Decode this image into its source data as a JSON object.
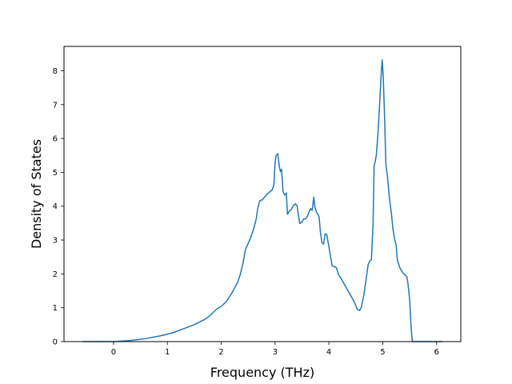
{
  "chart_data": {
    "type": "line",
    "title": "",
    "xlabel": "Frequency (THz)",
    "ylabel": "Density of States",
    "xlim": [
      -0.92,
      6.45
    ],
    "ylim": [
      0,
      8.72
    ],
    "xticks": [
      0,
      1,
      2,
      3,
      4,
      5,
      6
    ],
    "yticks": [
      0,
      1,
      2,
      3,
      4,
      5,
      6,
      7,
      8
    ],
    "xtick_labels": [
      "0",
      "1",
      "2",
      "3",
      "4",
      "5",
      "6"
    ],
    "ytick_labels": [
      "0",
      "1",
      "2",
      "3",
      "4",
      "5",
      "6",
      "7",
      "8"
    ],
    "grid": false,
    "legend": "none",
    "series": [
      {
        "color": "#1f77b4",
        "points": [
          [
            -0.57,
            0.0
          ],
          [
            0.0,
            0.0
          ],
          [
            0.3,
            0.03
          ],
          [
            0.6,
            0.09
          ],
          [
            0.9,
            0.18
          ],
          [
            1.1,
            0.26
          ],
          [
            1.3,
            0.38
          ],
          [
            1.5,
            0.5
          ],
          [
            1.7,
            0.66
          ],
          [
            1.8,
            0.78
          ],
          [
            1.9,
            0.94
          ],
          [
            2.0,
            1.04
          ],
          [
            2.1,
            1.19
          ],
          [
            2.2,
            1.44
          ],
          [
            2.3,
            1.74
          ],
          [
            2.35,
            1.96
          ],
          [
            2.4,
            2.28
          ],
          [
            2.45,
            2.72
          ],
          [
            2.5,
            2.9
          ],
          [
            2.55,
            3.08
          ],
          [
            2.6,
            3.32
          ],
          [
            2.65,
            3.62
          ],
          [
            2.68,
            3.95
          ],
          [
            2.72,
            4.17
          ],
          [
            2.76,
            4.18
          ],
          [
            2.8,
            4.26
          ],
          [
            2.85,
            4.35
          ],
          [
            2.9,
            4.42
          ],
          [
            2.95,
            4.49
          ],
          [
            2.98,
            4.65
          ],
          [
            3.0,
            5.28
          ],
          [
            3.02,
            5.5
          ],
          [
            3.05,
            5.55
          ],
          [
            3.08,
            5.17
          ],
          [
            3.1,
            5.02
          ],
          [
            3.12,
            5.09
          ],
          [
            3.15,
            4.42
          ],
          [
            3.18,
            4.33
          ],
          [
            3.21,
            4.39
          ],
          [
            3.23,
            3.76
          ],
          [
            3.27,
            3.87
          ],
          [
            3.3,
            3.9
          ],
          [
            3.34,
            4.02
          ],
          [
            3.38,
            4.07
          ],
          [
            3.41,
            4.01
          ],
          [
            3.43,
            3.77
          ],
          [
            3.46,
            3.49
          ],
          [
            3.5,
            3.53
          ],
          [
            3.53,
            3.62
          ],
          [
            3.57,
            3.63
          ],
          [
            3.6,
            3.7
          ],
          [
            3.63,
            3.82
          ],
          [
            3.66,
            3.93
          ],
          [
            3.69,
            3.88
          ],
          [
            3.72,
            4.27
          ],
          [
            3.74,
            3.97
          ],
          [
            3.77,
            3.82
          ],
          [
            3.8,
            3.75
          ],
          [
            3.82,
            3.66
          ],
          [
            3.84,
            3.27
          ],
          [
            3.87,
            2.92
          ],
          [
            3.9,
            2.88
          ],
          [
            3.93,
            3.18
          ],
          [
            3.96,
            3.17
          ],
          [
            4.0,
            2.8
          ],
          [
            4.03,
            2.52
          ],
          [
            4.06,
            2.24
          ],
          [
            4.1,
            2.21
          ],
          [
            4.14,
            2.18
          ],
          [
            4.18,
            1.98
          ],
          [
            4.25,
            1.8
          ],
          [
            4.32,
            1.6
          ],
          [
            4.4,
            1.38
          ],
          [
            4.48,
            1.14
          ],
          [
            4.53,
            0.95
          ],
          [
            4.57,
            0.92
          ],
          [
            4.6,
            1.0
          ],
          [
            4.65,
            1.38
          ],
          [
            4.7,
            1.94
          ],
          [
            4.73,
            2.28
          ],
          [
            4.76,
            2.38
          ],
          [
            4.79,
            2.42
          ],
          [
            4.82,
            3.48
          ],
          [
            4.84,
            5.2
          ],
          [
            4.86,
            5.31
          ],
          [
            4.88,
            5.5
          ],
          [
            4.91,
            6.1
          ],
          [
            4.94,
            6.95
          ],
          [
            4.97,
            7.85
          ],
          [
            4.99,
            8.32
          ],
          [
            5.01,
            7.8
          ],
          [
            5.03,
            6.85
          ],
          [
            5.06,
            5.2
          ],
          [
            5.09,
            4.85
          ],
          [
            5.12,
            4.3
          ],
          [
            5.16,
            3.8
          ],
          [
            5.19,
            3.32
          ],
          [
            5.22,
            3.03
          ],
          [
            5.25,
            2.84
          ],
          [
            5.27,
            2.42
          ],
          [
            5.32,
            2.17
          ],
          [
            5.37,
            2.04
          ],
          [
            5.42,
            1.96
          ],
          [
            5.45,
            1.91
          ],
          [
            5.47,
            1.7
          ],
          [
            5.5,
            1.24
          ],
          [
            5.53,
            0.35
          ],
          [
            5.55,
            0.0
          ],
          [
            6.1,
            0.0
          ]
        ]
      }
    ]
  }
}
